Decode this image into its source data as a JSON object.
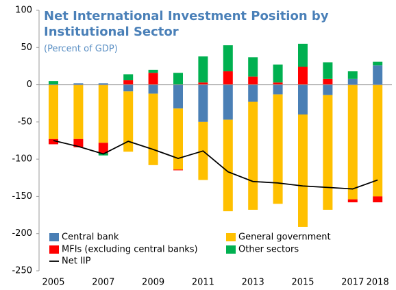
{
  "chart_data": {
    "type": "bar",
    "stacked": true,
    "title": "Net International Investment Position by Institutional Sector",
    "subtitle": "(Percent of GDP)",
    "categories": [
      "2005",
      null,
      "2007",
      null,
      "2009",
      null,
      "2011",
      null,
      "2013",
      null,
      "2015",
      null,
      "2017",
      "2018"
    ],
    "series": [
      {
        "name": "Central bank",
        "color": "#4a7fb5",
        "values": [
          0,
          2,
          2,
          -9,
          -12,
          -32,
          -50,
          -47,
          -23,
          -13,
          -40,
          -14,
          8,
          26
        ]
      },
      {
        "name": "General government",
        "color": "#ffc000",
        "values": [
          -73,
          -73,
          -78,
          -81,
          -96,
          -82,
          -78,
          -123,
          -145,
          -147,
          -151,
          -154,
          -154,
          -150
        ]
      },
      {
        "name": "MFIs (excluding central banks)",
        "color": "#ff0000",
        "values": [
          -7,
          -11,
          -14,
          6,
          16,
          -1,
          3,
          18,
          11,
          3,
          24,
          8,
          -4,
          -8
        ]
      },
      {
        "name": "Other sectors",
        "color": "#00b050",
        "values": [
          5,
          0,
          -3,
          8,
          4,
          16,
          35,
          35,
          26,
          24,
          31,
          22,
          10,
          5
        ]
      },
      {
        "name": "Net IIP",
        "color": "#000000",
        "type": "line",
        "values": [
          -75,
          -83,
          -93,
          -76,
          -87,
          -99,
          -89,
          -117,
          -130,
          -132,
          -136,
          -138,
          -140,
          -128
        ]
      }
    ],
    "ylim": [
      -250,
      100
    ],
    "yticks": [
      100,
      50,
      0,
      -50,
      -100,
      -150,
      -200,
      -250
    ]
  }
}
